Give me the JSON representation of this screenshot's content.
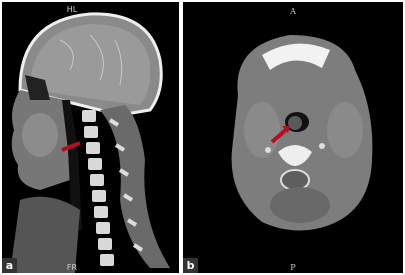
{
  "panels": [
    {
      "label": "a",
      "top_marker": "HL",
      "bottom_marker": "FR"
    },
    {
      "label": "b",
      "top_marker": "A",
      "bottom_marker": "P"
    }
  ]
}
